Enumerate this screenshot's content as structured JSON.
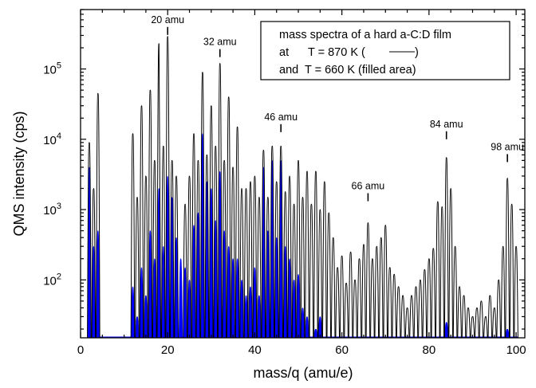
{
  "chart_data": {
    "type": "line",
    "xlabel": "mass/q (amu/e)",
    "ylabel": "QMS intensity (cps)",
    "xlim": [
      0,
      102
    ],
    "ylim": [
      15,
      700000
    ],
    "yscale": "log",
    "x_ticks": [
      0,
      20,
      40,
      60,
      80,
      100
    ],
    "y_ticks": [
      {
        "value": 100,
        "mantissa": "10",
        "exponent": "2"
      },
      {
        "value": 1000,
        "mantissa": "10",
        "exponent": "3"
      },
      {
        "value": 10000,
        "mantissa": "10",
        "exponent": "4"
      },
      {
        "value": 100000,
        "mantissa": "10",
        "exponent": "5"
      }
    ],
    "grid": false,
    "legend_box": {
      "placement": "top-right",
      "lines": [
        "mass spectra of a hard a-C:D film",
        "at      T = 870 K (",
        ")",
        "and  T = 660 K (filled area)"
      ]
    },
    "annotations": [
      {
        "label": "20 amu",
        "x": 20,
        "y": 290000
      },
      {
        "label": "32 amu",
        "x": 32,
        "y": 140000
      },
      {
        "label": "46 amu",
        "x": 46,
        "y": 12000
      },
      {
        "label": "66 amu",
        "x": 66,
        "y": 1250
      },
      {
        "label": "84 amu",
        "x": 84,
        "y": 9500
      },
      {
        "label": "98 amu",
        "x": 98,
        "y": 4500
      }
    ],
    "series": [
      {
        "style": "line",
        "color": "#000000",
        "points": [
          [
            2,
            9000
          ],
          [
            3,
            2000
          ],
          [
            4,
            45000
          ],
          [
            12,
            12000
          ],
          [
            13,
            1500
          ],
          [
            14,
            30000
          ],
          [
            15,
            3000
          ],
          [
            16,
            50000
          ],
          [
            17,
            5000
          ],
          [
            18,
            230000
          ],
          [
            19,
            8000
          ],
          [
            20,
            290000
          ],
          [
            21,
            5000
          ],
          [
            22,
            3000
          ],
          [
            24,
            1200
          ],
          [
            25,
            3000
          ],
          [
            26,
            12000
          ],
          [
            27,
            5000
          ],
          [
            28,
            90000
          ],
          [
            29,
            6000
          ],
          [
            30,
            30000
          ],
          [
            31,
            8000
          ],
          [
            32,
            120000
          ],
          [
            33,
            5000
          ],
          [
            34,
            40000
          ],
          [
            35,
            4000
          ],
          [
            36,
            15000
          ],
          [
            37,
            2000
          ],
          [
            38,
            2000
          ],
          [
            39,
            2500
          ],
          [
            40,
            3000
          ],
          [
            41,
            1500
          ],
          [
            42,
            7000
          ],
          [
            43,
            1500
          ],
          [
            44,
            8000
          ],
          [
            45,
            2500
          ],
          [
            46,
            8000
          ],
          [
            47,
            1800
          ],
          [
            48,
            3000
          ],
          [
            49,
            1200
          ],
          [
            50,
            5000
          ],
          [
            51,
            1500
          ],
          [
            52,
            3500
          ],
          [
            53,
            1200
          ],
          [
            54,
            3500
          ],
          [
            55,
            1000
          ],
          [
            56,
            2500
          ],
          [
            57,
            900
          ],
          [
            58,
            400
          ],
          [
            59,
            150
          ],
          [
            60,
            220
          ],
          [
            61,
            90
          ],
          [
            62,
            250
          ],
          [
            63,
            100
          ],
          [
            64,
            200
          ],
          [
            65,
            320
          ],
          [
            66,
            650
          ],
          [
            67,
            200
          ],
          [
            68,
            300
          ],
          [
            69,
            400
          ],
          [
            70,
            600
          ],
          [
            71,
            150
          ],
          [
            72,
            120
          ],
          [
            73,
            80
          ],
          [
            74,
            60
          ],
          [
            75,
            40
          ],
          [
            76,
            60
          ],
          [
            77,
            80
          ],
          [
            78,
            100
          ],
          [
            79,
            140
          ],
          [
            80,
            200
          ],
          [
            81,
            280
          ],
          [
            82,
            1300
          ],
          [
            83,
            1100
          ],
          [
            84,
            5500
          ],
          [
            85,
            2000
          ],
          [
            86,
            300
          ],
          [
            87,
            80
          ],
          [
            88,
            60
          ],
          [
            89,
            40
          ],
          [
            90,
            30
          ],
          [
            91,
            40
          ],
          [
            92,
            50
          ],
          [
            93,
            30
          ],
          [
            94,
            60
          ],
          [
            95,
            40
          ],
          [
            96,
            100
          ],
          [
            97,
            300
          ],
          [
            98,
            2800
          ],
          [
            99,
            1200
          ],
          [
            100,
            300
          ]
        ]
      },
      {
        "style": "filled",
        "color": "#0000ff",
        "points": [
          [
            2,
            4000
          ],
          [
            3,
            300
          ],
          [
            4,
            500
          ],
          [
            12,
            80
          ],
          [
            13,
            30
          ],
          [
            14,
            150
          ],
          [
            15,
            60
          ],
          [
            16,
            500
          ],
          [
            17,
            200
          ],
          [
            18,
            2000
          ],
          [
            19,
            300
          ],
          [
            20,
            3000
          ],
          [
            21,
            1500
          ],
          [
            22,
            400
          ],
          [
            23,
            200
          ],
          [
            24,
            150
          ],
          [
            25,
            100
          ],
          [
            26,
            600
          ],
          [
            27,
            900
          ],
          [
            28,
            12000
          ],
          [
            29,
            2500
          ],
          [
            30,
            2000
          ],
          [
            31,
            700
          ],
          [
            32,
            3500
          ],
          [
            33,
            500
          ],
          [
            34,
            300
          ],
          [
            35,
            200
          ],
          [
            36,
            200
          ],
          [
            37,
            100
          ],
          [
            38,
            60
          ],
          [
            39,
            80
          ],
          [
            40,
            150
          ],
          [
            41,
            60
          ],
          [
            42,
            4000
          ],
          [
            43,
            500
          ],
          [
            44,
            5000
          ],
          [
            45,
            400
          ],
          [
            46,
            5000
          ],
          [
            47,
            300
          ],
          [
            48,
            200
          ],
          [
            49,
            100
          ],
          [
            50,
            120
          ],
          [
            51,
            40
          ],
          [
            52,
            30
          ],
          [
            54,
            20
          ],
          [
            55,
            30
          ],
          [
            84,
            25
          ],
          [
            98,
            20
          ]
        ]
      }
    ]
  }
}
